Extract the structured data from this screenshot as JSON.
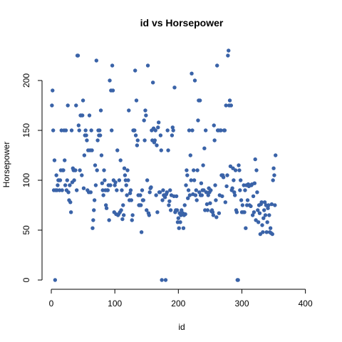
{
  "chart_data": {
    "type": "scatter",
    "title": "id vs Horsepower",
    "xlabel": "id",
    "ylabel": "Horsepower",
    "xlim": [
      0,
      406
    ],
    "ylim": [
      0,
      230
    ],
    "xticks": [
      0,
      100,
      200,
      300,
      400
    ],
    "yticks": [
      0,
      50,
      100,
      150,
      200
    ],
    "point_color": "#3a63a8",
    "grid": false,
    "legend": "none",
    "points": [
      [
        1,
        175
      ],
      [
        2,
        190
      ],
      [
        3,
        150
      ],
      [
        4,
        90
      ],
      [
        5,
        120
      ],
      [
        6,
        0
      ],
      [
        7,
        90
      ],
      [
        8,
        105
      ],
      [
        9,
        90
      ],
      [
        10,
        95
      ],
      [
        11,
        100
      ],
      [
        12,
        100
      ],
      [
        13,
        90
      ],
      [
        14,
        100
      ],
      [
        15,
        110
      ],
      [
        16,
        150
      ],
      [
        17,
        90
      ],
      [
        18,
        110
      ],
      [
        19,
        110
      ],
      [
        20,
        150
      ],
      [
        21,
        120
      ],
      [
        22,
        95
      ],
      [
        23,
        150
      ],
      [
        24,
        90
      ],
      [
        25,
        100
      ],
      [
        26,
        175
      ],
      [
        27,
        88
      ],
      [
        28,
        80
      ],
      [
        29,
        95
      ],
      [
        30,
        78
      ],
      [
        31,
        68
      ],
      [
        32,
        150
      ],
      [
        33,
        98
      ],
      [
        34,
        112
      ],
      [
        35,
        110
      ],
      [
        36,
        100
      ],
      [
        37,
        110
      ],
      [
        38,
        110
      ],
      [
        39,
        175
      ],
      [
        40,
        90
      ],
      [
        41,
        225
      ],
      [
        42,
        225
      ],
      [
        43,
        155
      ],
      [
        44,
        150
      ],
      [
        45,
        110
      ],
      [
        46,
        165
      ],
      [
        47,
        165
      ],
      [
        48,
        105
      ],
      [
        49,
        165
      ],
      [
        50,
        180
      ],
      [
        51,
        92
      ],
      [
        52,
        125
      ],
      [
        53,
        145
      ],
      [
        54,
        150
      ],
      [
        55,
        145
      ],
      [
        56,
        140
      ],
      [
        57,
        90
      ],
      [
        58,
        130
      ],
      [
        59,
        88
      ],
      [
        60,
        165
      ],
      [
        61,
        130
      ],
      [
        62,
        88
      ],
      [
        63,
        150
      ],
      [
        64,
        130
      ],
      [
        65,
        52
      ],
      [
        66,
        60
      ],
      [
        67,
        70
      ],
      [
        68,
        80
      ],
      [
        69,
        115
      ],
      [
        70,
        95
      ],
      [
        71,
        220
      ],
      [
        72,
        110
      ],
      [
        73,
        140
      ],
      [
        74,
        150
      ],
      [
        75,
        145
      ],
      [
        76,
        150
      ],
      [
        77,
        145
      ],
      [
        78,
        170
      ],
      [
        79,
        125
      ],
      [
        80,
        97
      ],
      [
        81,
        90
      ],
      [
        82,
        85
      ],
      [
        83,
        110
      ],
      [
        84,
        100
      ],
      [
        85,
        90
      ],
      [
        86,
        75
      ],
      [
        87,
        72
      ],
      [
        88,
        90
      ],
      [
        89,
        90
      ],
      [
        90,
        95
      ],
      [
        91,
        60
      ],
      [
        92,
        200
      ],
      [
        93,
        95
      ],
      [
        94,
        190
      ],
      [
        95,
        150
      ],
      [
        96,
        215
      ],
      [
        97,
        190
      ],
      [
        98,
        100
      ],
      [
        99,
        68
      ],
      [
        100,
        95
      ],
      [
        101,
        98
      ],
      [
        102,
        66
      ],
      [
        103,
        90
      ],
      [
        104,
        130
      ],
      [
        105,
        65
      ],
      [
        106,
        66
      ],
      [
        107,
        100
      ],
      [
        108,
        68
      ],
      [
        109,
        120
      ],
      [
        110,
        70
      ],
      [
        111,
        90
      ],
      [
        112,
        61
      ],
      [
        113,
        75
      ],
      [
        114,
        65
      ],
      [
        115,
        112
      ],
      [
        116,
        105
      ],
      [
        117,
        100
      ],
      [
        118,
        95
      ],
      [
        119,
        85
      ],
      [
        120,
        110
      ],
      [
        121,
        100
      ],
      [
        122,
        170
      ],
      [
        123,
        80
      ],
      [
        124,
        87
      ],
      [
        125,
        90
      ],
      [
        126,
        80
      ],
      [
        127,
        60
      ],
      [
        128,
        65
      ],
      [
        129,
        150
      ],
      [
        130,
        150
      ],
      [
        131,
        150
      ],
      [
        132,
        210
      ],
      [
        133,
        145
      ],
      [
        134,
        180
      ],
      [
        135,
        135
      ],
      [
        136,
        140
      ],
      [
        137,
        85
      ],
      [
        138,
        75
      ],
      [
        139,
        75
      ],
      [
        140,
        85
      ],
      [
        141,
        75
      ],
      [
        142,
        48
      ],
      [
        143,
        90
      ],
      [
        144,
        80
      ],
      [
        145,
        80
      ],
      [
        146,
        160
      ],
      [
        147,
        140
      ],
      [
        148,
        170
      ],
      [
        149,
        165
      ],
      [
        150,
        70
      ],
      [
        151,
        100
      ],
      [
        152,
        215
      ],
      [
        153,
        67
      ],
      [
        154,
        65
      ],
      [
        155,
        88
      ],
      [
        156,
        92
      ],
      [
        157,
        93
      ],
      [
        158,
        150
      ],
      [
        159,
        140
      ],
      [
        160,
        198
      ],
      [
        161,
        152
      ],
      [
        162,
        138
      ],
      [
        163,
        140
      ],
      [
        164,
        150
      ],
      [
        165,
        85
      ],
      [
        166,
        135
      ],
      [
        167,
        68
      ],
      [
        168,
        153
      ],
      [
        169,
        158
      ],
      [
        170,
        88
      ],
      [
        171,
        88
      ],
      [
        172,
        145
      ],
      [
        173,
        130
      ],
      [
        174,
        0
      ],
      [
        175,
        80
      ],
      [
        176,
        90
      ],
      [
        177,
        85
      ],
      [
        178,
        85
      ],
      [
        179,
        83
      ],
      [
        180,
        0
      ],
      [
        181,
        86
      ],
      [
        182,
        88
      ],
      [
        183,
        150
      ],
      [
        184,
        130
      ],
      [
        185,
        75
      ],
      [
        186,
        79
      ],
      [
        187,
        90
      ],
      [
        188,
        70
      ],
      [
        189,
        85
      ],
      [
        190,
        145
      ],
      [
        191,
        153
      ],
      [
        192,
        150
      ],
      [
        193,
        84
      ],
      [
        194,
        193
      ],
      [
        195,
        68
      ],
      [
        196,
        70
      ],
      [
        197,
        84
      ],
      [
        198,
        70
      ],
      [
        199,
        58
      ],
      [
        200,
        62
      ],
      [
        201,
        52
      ],
      [
        202,
        67
      ],
      [
        203,
        58
      ],
      [
        204,
        65
      ],
      [
        205,
        70
      ],
      [
        206,
        66
      ],
      [
        207,
        67
      ],
      [
        208,
        52
      ],
      [
        209,
        65
      ],
      [
        210,
        75
      ],
      [
        211,
        66
      ],
      [
        212,
        95
      ],
      [
        213,
        110
      ],
      [
        214,
        105
      ],
      [
        215,
        82
      ],
      [
        216,
        90
      ],
      [
        217,
        150
      ],
      [
        218,
        85
      ],
      [
        219,
        125
      ],
      [
        220,
        100
      ],
      [
        221,
        207
      ],
      [
        222,
        150
      ],
      [
        223,
        86
      ],
      [
        224,
        110
      ],
      [
        225,
        100
      ],
      [
        226,
        200
      ],
      [
        227,
        85
      ],
      [
        228,
        90
      ],
      [
        229,
        80
      ],
      [
        230,
        110
      ],
      [
        231,
        160
      ],
      [
        232,
        180
      ],
      [
        233,
        88
      ],
      [
        234,
        180
      ],
      [
        235,
        85
      ],
      [
        236,
        97
      ],
      [
        237,
        85
      ],
      [
        238,
        90
      ],
      [
        239,
        115
      ],
      [
        240,
        90
      ],
      [
        241,
        132
      ],
      [
        242,
        70
      ],
      [
        243,
        150
      ],
      [
        244,
        88
      ],
      [
        245,
        76
      ],
      [
        246,
        70
      ],
      [
        247,
        85
      ],
      [
        248,
        92
      ],
      [
        249,
        88
      ],
      [
        250,
        77
      ],
      [
        251,
        90
      ],
      [
        252,
        69
      ],
      [
        253,
        70
      ],
      [
        254,
        68
      ],
      [
        255,
        65
      ],
      [
        256,
        155
      ],
      [
        257,
        140
      ],
      [
        258,
        95
      ],
      [
        259,
        80
      ],
      [
        260,
        63
      ],
      [
        261,
        215
      ],
      [
        262,
        150
      ],
      [
        263,
        150
      ],
      [
        264,
        67
      ],
      [
        265,
        85
      ],
      [
        266,
        150
      ],
      [
        267,
        150
      ],
      [
        268,
        105
      ],
      [
        269,
        84
      ],
      [
        270,
        105
      ],
      [
        271,
        103
      ],
      [
        272,
        150
      ],
      [
        273,
        150
      ],
      [
        274,
        78
      ],
      [
        275,
        175
      ],
      [
        276,
        94
      ],
      [
        277,
        105
      ],
      [
        278,
        225
      ],
      [
        279,
        230
      ],
      [
        280,
        175
      ],
      [
        281,
        180
      ],
      [
        282,
        114
      ],
      [
        283,
        175
      ],
      [
        284,
        90
      ],
      [
        285,
        92
      ],
      [
        286,
        112
      ],
      [
        287,
        100
      ],
      [
        288,
        88
      ],
      [
        289,
        85
      ],
      [
        290,
        110
      ],
      [
        291,
        70
      ],
      [
        292,
        68
      ],
      [
        293,
        0
      ],
      [
        294,
        0
      ],
      [
        295,
        115
      ],
      [
        296,
        110
      ],
      [
        297,
        90
      ],
      [
        298,
        100
      ],
      [
        299,
        80
      ],
      [
        300,
        68
      ],
      [
        301,
        75
      ],
      [
        302,
        68
      ],
      [
        303,
        95
      ],
      [
        304,
        68
      ],
      [
        305,
        90
      ],
      [
        306,
        52
      ],
      [
        307,
        95
      ],
      [
        308,
        75
      ],
      [
        309,
        80
      ],
      [
        310,
        96
      ],
      [
        311,
        94
      ],
      [
        312,
        75
      ],
      [
        313,
        95
      ],
      [
        314,
        74
      ],
      [
        315,
        95
      ],
      [
        316,
        96
      ],
      [
        317,
        65
      ],
      [
        318,
        84
      ],
      [
        319,
        68
      ],
      [
        320,
        97
      ],
      [
        321,
        121
      ],
      [
        322,
        60
      ],
      [
        323,
        110
      ],
      [
        324,
        88
      ],
      [
        325,
        70
      ],
      [
        326,
        58
      ],
      [
        327,
        75
      ],
      [
        328,
        67
      ],
      [
        329,
        46
      ],
      [
        330,
        76
      ],
      [
        331,
        78
      ],
      [
        332,
        55
      ],
      [
        333,
        48
      ],
      [
        334,
        62
      ],
      [
        335,
        70
      ],
      [
        336,
        78
      ],
      [
        337,
        65
      ],
      [
        338,
        75
      ],
      [
        339,
        48
      ],
      [
        340,
        58
      ],
      [
        341,
        72
      ],
      [
        342,
        75
      ],
      [
        343,
        65
      ],
      [
        344,
        48
      ],
      [
        345,
        52
      ],
      [
        346,
        47
      ],
      [
        347,
        76
      ],
      [
        348,
        46
      ],
      [
        349,
        100
      ],
      [
        350,
        112
      ],
      [
        351,
        105
      ],
      [
        352,
        75
      ],
      [
        353,
        125
      ]
    ]
  }
}
